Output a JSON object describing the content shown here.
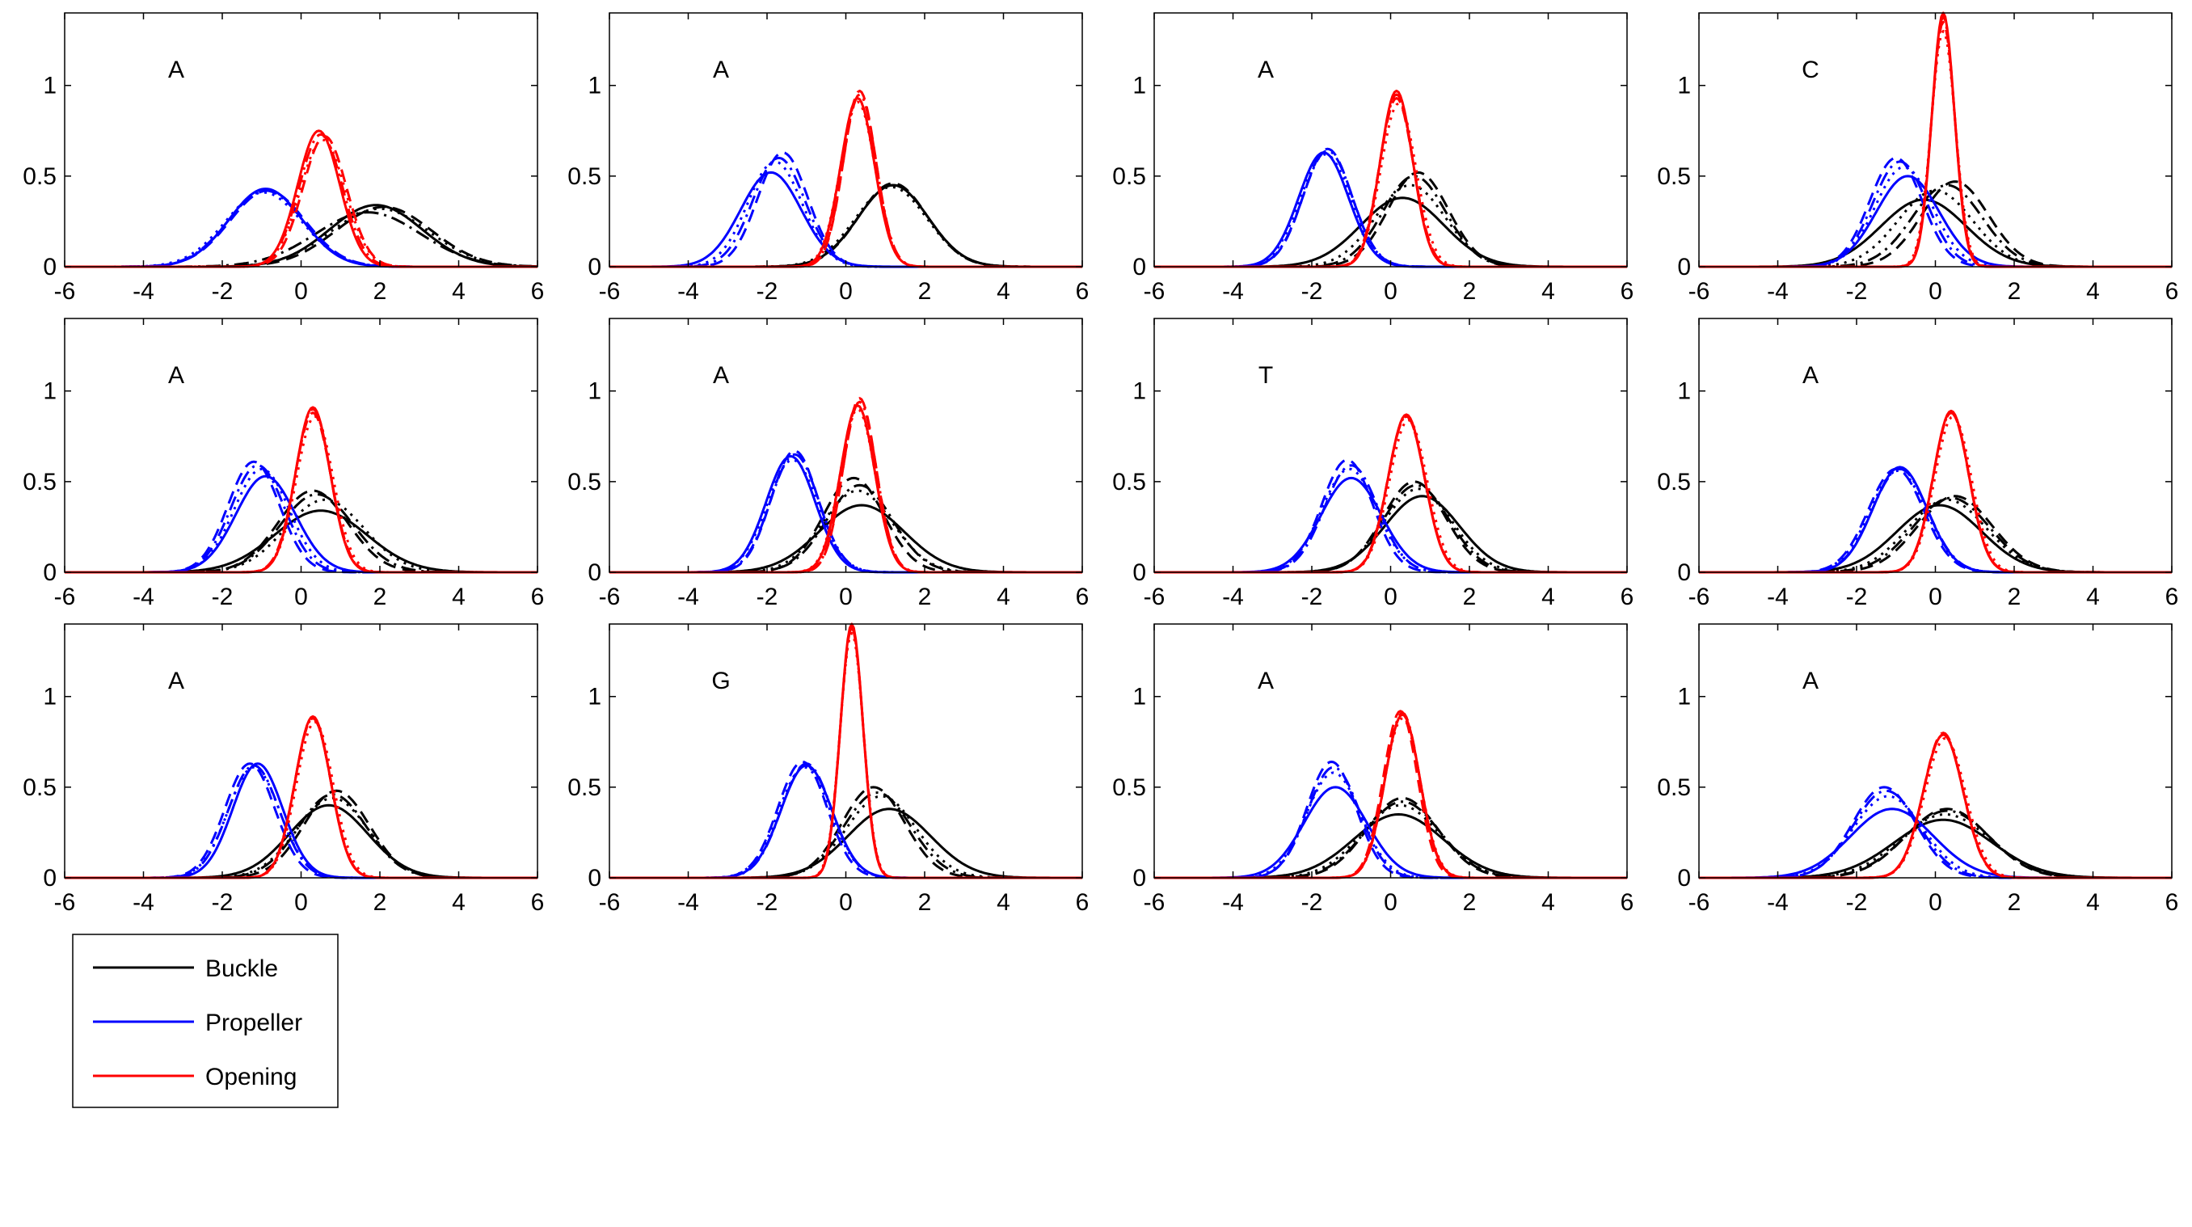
{
  "colors": {
    "buckle": "#000000",
    "propeller": "#0000ff",
    "opening": "#ff0000"
  },
  "line_styles": [
    "solid",
    "dashed",
    "dotted",
    "dashdot"
  ],
  "legend": {
    "placement": "bottom-left",
    "items": [
      {
        "key": "buckle",
        "label": "Buckle"
      },
      {
        "key": "propeller",
        "label": "Propeller"
      },
      {
        "key": "opening",
        "label": "Opening"
      }
    ]
  },
  "chart_data": {
    "type": "line",
    "layout": {
      "rows": 3,
      "cols": 4
    },
    "xlim": [
      -6,
      6
    ],
    "ylim": [
      0,
      1.4
    ],
    "xticks": [
      -6,
      -4,
      -2,
      0,
      2,
      4,
      6
    ],
    "yticks": [
      0,
      0.5,
      1
    ],
    "ytick_labels": [
      "0",
      "0.5",
      "1"
    ],
    "grid": false,
    "panels": [
      {
        "label": "A",
        "buckle": [
          [
            1.9,
            0.34
          ],
          [
            2.1,
            0.33
          ],
          [
            2.0,
            0.32
          ],
          [
            1.7,
            0.3
          ]
        ],
        "propeller": [
          [
            -0.9,
            0.43
          ],
          [
            -0.85,
            0.42
          ],
          [
            -0.95,
            0.41
          ],
          [
            -0.9,
            0.42
          ]
        ],
        "opening": [
          [
            0.45,
            0.75
          ],
          [
            0.6,
            0.72
          ],
          [
            0.55,
            0.7
          ],
          [
            0.5,
            0.73
          ]
        ]
      },
      {
        "label": "A",
        "buckle": [
          [
            1.2,
            0.45
          ],
          [
            1.2,
            0.46
          ],
          [
            1.15,
            0.44
          ],
          [
            1.2,
            0.45
          ]
        ],
        "propeller": [
          [
            -1.9,
            0.52
          ],
          [
            -1.6,
            0.63
          ],
          [
            -1.8,
            0.58
          ],
          [
            -1.7,
            0.6
          ]
        ],
        "opening": [
          [
            0.3,
            0.93
          ],
          [
            0.35,
            0.97
          ],
          [
            0.3,
            0.91
          ],
          [
            0.35,
            0.95
          ]
        ]
      },
      {
        "label": "A",
        "buckle": [
          [
            0.3,
            0.38
          ],
          [
            0.7,
            0.52
          ],
          [
            0.5,
            0.45
          ],
          [
            0.6,
            0.5
          ]
        ],
        "propeller": [
          [
            -1.7,
            0.63
          ],
          [
            -1.6,
            0.65
          ],
          [
            -1.65,
            0.62
          ],
          [
            -1.6,
            0.64
          ]
        ],
        "opening": [
          [
            0.15,
            0.97
          ],
          [
            0.15,
            0.93
          ],
          [
            0.2,
            0.9
          ],
          [
            0.15,
            0.95
          ]
        ]
      },
      {
        "label": "C",
        "buckle": [
          [
            -0.3,
            0.37
          ],
          [
            0.5,
            0.47
          ],
          [
            0.0,
            0.42
          ],
          [
            0.3,
            0.45
          ]
        ],
        "propeller": [
          [
            -0.7,
            0.5
          ],
          [
            -1.0,
            0.6
          ],
          [
            -0.8,
            0.55
          ],
          [
            -0.9,
            0.58
          ]
        ],
        "opening": [
          [
            0.2,
            1.4
          ],
          [
            0.2,
            1.35
          ],
          [
            0.2,
            1.3
          ],
          [
            0.2,
            1.38
          ]
        ]
      },
      {
        "label": "A",
        "buckle": [
          [
            0.5,
            0.34
          ],
          [
            0.3,
            0.45
          ],
          [
            0.6,
            0.4
          ],
          [
            0.4,
            0.43
          ]
        ],
        "propeller": [
          [
            -0.9,
            0.53
          ],
          [
            -1.2,
            0.61
          ],
          [
            -1.0,
            0.57
          ],
          [
            -1.1,
            0.59
          ]
        ],
        "opening": [
          [
            0.3,
            0.91
          ],
          [
            0.3,
            0.88
          ],
          [
            0.35,
            0.86
          ],
          [
            0.3,
            0.9
          ]
        ]
      },
      {
        "label": "A",
        "buckle": [
          [
            0.4,
            0.37
          ],
          [
            0.2,
            0.52
          ],
          [
            0.3,
            0.45
          ],
          [
            0.35,
            0.48
          ]
        ],
        "propeller": [
          [
            -1.4,
            0.64
          ],
          [
            -1.3,
            0.67
          ],
          [
            -1.35,
            0.62
          ],
          [
            -1.3,
            0.65
          ]
        ],
        "opening": [
          [
            0.3,
            0.92
          ],
          [
            0.35,
            0.96
          ],
          [
            0.3,
            0.9
          ],
          [
            0.35,
            0.94
          ]
        ]
      },
      {
        "label": "T",
        "buckle": [
          [
            0.8,
            0.42
          ],
          [
            0.6,
            0.5
          ],
          [
            0.7,
            0.46
          ],
          [
            0.65,
            0.48
          ]
        ],
        "propeller": [
          [
            -1.0,
            0.52
          ],
          [
            -1.1,
            0.62
          ],
          [
            -1.05,
            0.57
          ],
          [
            -1.0,
            0.59
          ]
        ],
        "opening": [
          [
            0.4,
            0.87
          ],
          [
            0.4,
            0.86
          ],
          [
            0.45,
            0.84
          ],
          [
            0.4,
            0.86
          ]
        ]
      },
      {
        "label": "A",
        "buckle": [
          [
            0.1,
            0.37
          ],
          [
            0.5,
            0.42
          ],
          [
            0.3,
            0.4
          ],
          [
            0.4,
            0.41
          ]
        ],
        "propeller": [
          [
            -0.9,
            0.58
          ],
          [
            -1.0,
            0.57
          ],
          [
            -0.95,
            0.56
          ],
          [
            -0.9,
            0.57
          ]
        ],
        "opening": [
          [
            0.4,
            0.89
          ],
          [
            0.4,
            0.88
          ],
          [
            0.45,
            0.86
          ],
          [
            0.4,
            0.88
          ]
        ]
      },
      {
        "label": "A",
        "buckle": [
          [
            0.7,
            0.4
          ],
          [
            0.9,
            0.48
          ],
          [
            0.8,
            0.44
          ],
          [
            0.8,
            0.46
          ]
        ],
        "propeller": [
          [
            -1.1,
            0.63
          ],
          [
            -1.3,
            0.63
          ],
          [
            -1.2,
            0.61
          ],
          [
            -1.2,
            0.62
          ]
        ],
        "opening": [
          [
            0.3,
            0.89
          ],
          [
            0.3,
            0.88
          ],
          [
            0.35,
            0.86
          ],
          [
            0.3,
            0.88
          ]
        ]
      },
      {
        "label": "G",
        "buckle": [
          [
            1.1,
            0.38
          ],
          [
            0.7,
            0.5
          ],
          [
            0.9,
            0.45
          ],
          [
            0.8,
            0.47
          ]
        ],
        "propeller": [
          [
            -1.0,
            0.62
          ],
          [
            -1.1,
            0.64
          ],
          [
            -1.05,
            0.61
          ],
          [
            -1.0,
            0.63
          ]
        ],
        "opening": [
          [
            0.15,
            1.4
          ],
          [
            0.15,
            1.38
          ],
          [
            0.15,
            1.35
          ],
          [
            0.15,
            1.38
          ]
        ]
      },
      {
        "label": "A",
        "buckle": [
          [
            0.2,
            0.35
          ],
          [
            0.3,
            0.44
          ],
          [
            0.25,
            0.4
          ],
          [
            0.3,
            0.42
          ]
        ],
        "propeller": [
          [
            -1.4,
            0.5
          ],
          [
            -1.5,
            0.64
          ],
          [
            -1.45,
            0.58
          ],
          [
            -1.45,
            0.61
          ]
        ],
        "opening": [
          [
            0.3,
            0.9
          ],
          [
            0.25,
            0.92
          ],
          [
            0.3,
            0.88
          ],
          [
            0.3,
            0.91
          ]
        ]
      },
      {
        "label": "A",
        "buckle": [
          [
            0.2,
            0.32
          ],
          [
            0.3,
            0.38
          ],
          [
            0.25,
            0.35
          ],
          [
            0.3,
            0.37
          ]
        ],
        "propeller": [
          [
            -1.1,
            0.38
          ],
          [
            -1.3,
            0.5
          ],
          [
            -1.2,
            0.45
          ],
          [
            -1.25,
            0.48
          ]
        ],
        "opening": [
          [
            0.2,
            0.79
          ],
          [
            0.2,
            0.8
          ],
          [
            0.25,
            0.77
          ],
          [
            0.2,
            0.79
          ]
        ]
      }
    ]
  }
}
